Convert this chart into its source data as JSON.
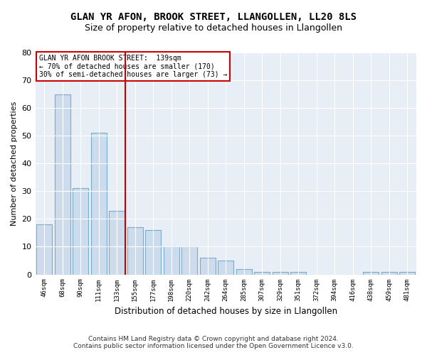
{
  "title": "GLAN YR AFON, BROOK STREET, LLANGOLLEN, LL20 8LS",
  "subtitle": "Size of property relative to detached houses in Llangollen",
  "xlabel": "Distribution of detached houses by size in Llangollen",
  "ylabel": "Number of detached properties",
  "categories": [
    "46sqm",
    "68sqm",
    "90sqm",
    "111sqm",
    "133sqm",
    "155sqm",
    "177sqm",
    "198sqm",
    "220sqm",
    "242sqm",
    "264sqm",
    "285sqm",
    "307sqm",
    "329sqm",
    "351sqm",
    "372sqm",
    "394sqm",
    "416sqm",
    "438sqm",
    "459sqm",
    "481sqm"
  ],
  "values": [
    18,
    65,
    31,
    51,
    23,
    17,
    16,
    10,
    10,
    6,
    5,
    2,
    1,
    1,
    1,
    0,
    0,
    0,
    1,
    1,
    1
  ],
  "bar_color": "#cddcec",
  "bar_edge_color": "#7aaac8",
  "vline_color": "#cc0000",
  "annotation_text": "GLAN YR AFON BROOK STREET:  139sqm\n← 70% of detached houses are smaller (170)\n30% of semi-detached houses are larger (73) →",
  "annotation_box_color": "#ffffff",
  "annotation_box_edge": "#cc0000",
  "ylim": [
    0,
    80
  ],
  "yticks": [
    0,
    10,
    20,
    30,
    40,
    50,
    60,
    70,
    80
  ],
  "plot_background": "#e8eef5",
  "footer_line1": "Contains HM Land Registry data © Crown copyright and database right 2024.",
  "footer_line2": "Contains public sector information licensed under the Open Government Licence v3.0.",
  "title_fontsize": 10,
  "subtitle_fontsize": 9,
  "xlabel_fontsize": 8.5,
  "ylabel_fontsize": 8
}
